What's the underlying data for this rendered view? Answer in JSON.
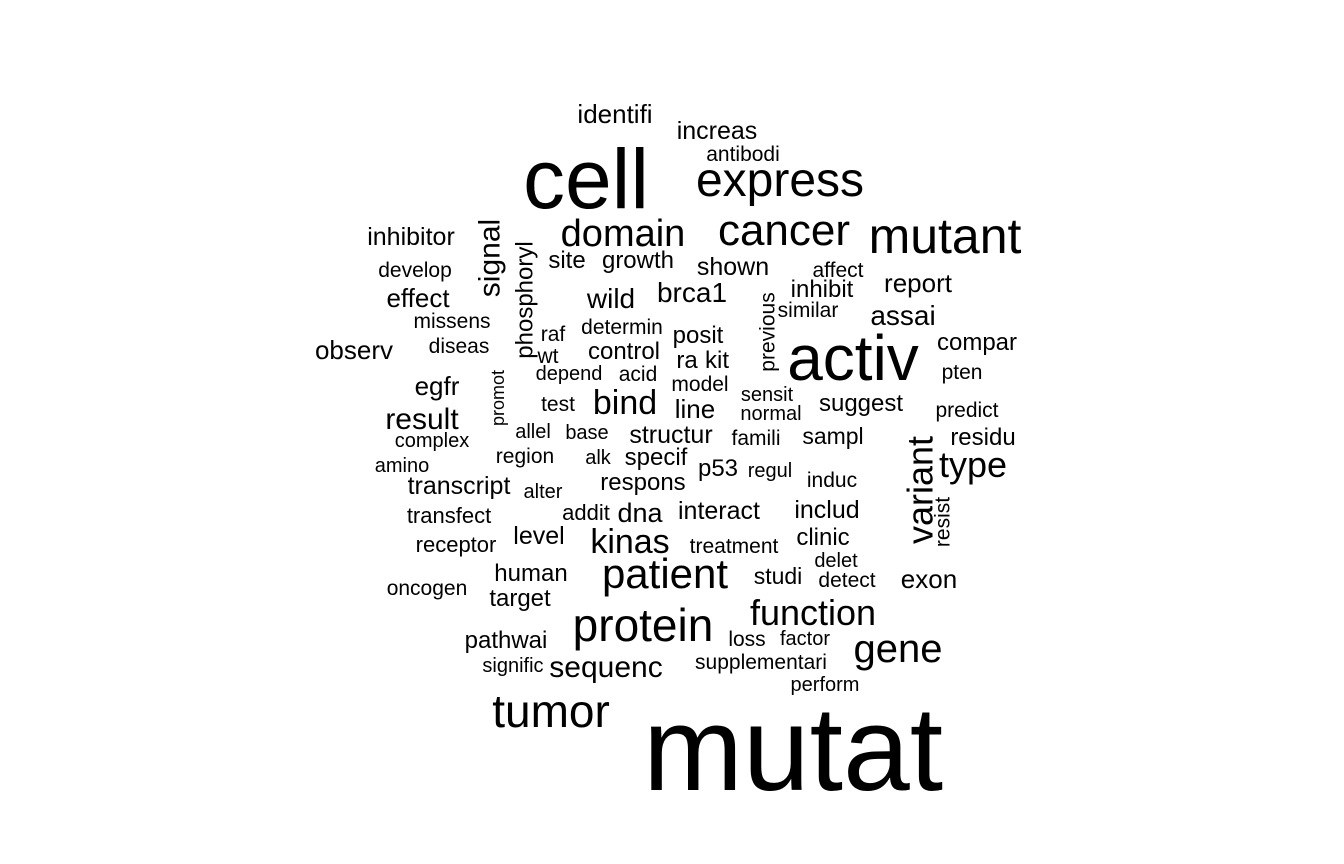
{
  "words": [
    "mutat",
    "cell",
    "activ",
    "patient",
    "protein",
    "express",
    "cancer",
    "mutant",
    "domain",
    "tumor",
    "variant",
    "gene",
    "function",
    "type",
    "kinas",
    "bind",
    "sequenc",
    "signal",
    "phosphoryl",
    "result",
    "identifi",
    "brca1",
    "assai",
    "wild",
    "inhibitor",
    "increas",
    "antibodi",
    "develop",
    "growth",
    "site",
    "shown",
    "affect",
    "inhibit",
    "report",
    "effect",
    "missens",
    "observ",
    "raf",
    "determin",
    "posit",
    "compar",
    "similar",
    "diseas",
    "wt",
    "control",
    "ra",
    "kit",
    "previous",
    "depend",
    "acid",
    "model",
    "pten",
    "egfr",
    "test",
    "sensit",
    "suggest",
    "predict",
    "line",
    "normal",
    "promot",
    "allel",
    "base",
    "structur",
    "famili",
    "sampl",
    "residu",
    "complex",
    "region",
    "amino",
    "alk",
    "specif",
    "p53",
    "regul",
    "induc",
    "transcript",
    "alter",
    "respons",
    "transfect",
    "addit",
    "dna",
    "interact",
    "includ",
    "resist",
    "receptor",
    "level",
    "clinic",
    "treatment",
    "delet",
    "human",
    "studi",
    "detect",
    "exon",
    "oncogen",
    "target",
    "pathwai",
    "loss",
    "factor",
    "signific",
    "supplementari",
    "perform"
  ],
  "colors": {
    "text": "#000000",
    "background": "#ffffff"
  }
}
